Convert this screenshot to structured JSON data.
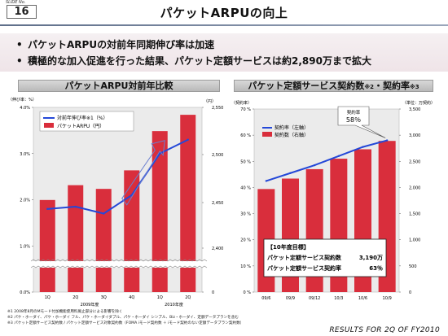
{
  "header": {
    "slide_caption": "SLIDE No.",
    "slide_number": "16",
    "title": "パケットARPUの向上"
  },
  "bullets": [
    "パケットARPUの対前年同期伸び率は加速",
    "積極的な加入促進を行った結果、パケット定額サービスは約2,890万まで拡大"
  ],
  "left_panel": {
    "title": "パケットARPU対前年比較"
  },
  "right_panel": {
    "title": "パケット定額サービス契約数",
    "title_note": "※2",
    "title_sep": "・契約率",
    "title_note2": "※3"
  },
  "colors": {
    "bar": "#d92e3c",
    "line": "#2448d8",
    "panel_bg": "#ebebeb"
  },
  "footnotes": [
    "※1 2008年8月のMモード付加機能使用料廃止部分による影響を除く",
    "※2 パケ・ホーダイ、パケ・ホーダイ フル、パケ・ホーダイダブル、パケ・ホーダイ シンプル、Biz・ホーダイ、定額データプランを含む",
    "※3 パケット定額サービス契約数 / パケット定額サービス対象契約数（FOMA iモード契約数 ＋ iモード契約のない定額データプラン契約数）"
  ],
  "results": "RESULTS FOR 2Q OF FY2010",
  "chart_data": [
    {
      "type": "bar",
      "title": "パケットARPU対前年比較",
      "left_axis_label": "（伸び率：%）",
      "right_axis_label": "（円）",
      "categories": [
        "1Q",
        "2Q",
        "3Q",
        "4Q",
        "1Q",
        "2Q"
      ],
      "category_groups": [
        {
          "label": "2009年度",
          "from": 0,
          "to": 3
        },
        {
          "label": "2010年度",
          "from": 4,
          "to": 5
        }
      ],
      "left_ticks": [
        "0.0%",
        "1.0%",
        "2.0%",
        "3.0%",
        "4.0%"
      ],
      "right_ticks": [
        "0",
        "2,400",
        "2,450",
        "2,500",
        "2,550"
      ],
      "series": [
        {
          "name": "対前年伸び率※1（%）",
          "type": "line",
          "values": [
            1.8,
            1.85,
            1.7,
            2.1,
            3.0,
            3.3
          ],
          "ylim": [
            0,
            4
          ]
        },
        {
          "name": "パケットARPU（円）",
          "type": "bar",
          "values": [
            2425,
            2445,
            2440,
            2465,
            2518,
            2540
          ],
          "ylim": [
            2380,
            2550
          ]
        }
      ]
    },
    {
      "type": "bar",
      "title": "パケット定額サービス契約数・契約率",
      "left_axis_label": "（契約率）",
      "right_axis_label": "（単位：万契約）",
      "categories": [
        "09/6",
        "09/9",
        "09/12",
        "10/3",
        "10/6",
        "10/9"
      ],
      "left_ticks": [
        "0 %",
        "10 %",
        "20 %",
        "30 %",
        "40 %",
        "50 %",
        "60 %",
        "70 %"
      ],
      "right_ticks": [
        "0",
        "500",
        "1,000",
        "1,500",
        "2,000",
        "2,500",
        "3,000",
        "3,500"
      ],
      "ylim_left": [
        0,
        70
      ],
      "ylim_right": [
        0,
        3500
      ],
      "series": [
        {
          "name": "契約率（左軸）",
          "type": "line",
          "values": [
            42.5,
            45.5,
            48.5,
            52,
            55.5,
            58
          ]
        },
        {
          "name": "契約数（右軸）",
          "type": "bar",
          "values": [
            1970,
            2170,
            2350,
            2550,
            2730,
            2890
          ]
        }
      ],
      "callout": {
        "label": "契約率",
        "value": "58％"
      },
      "target_box": {
        "heading": "【10年度目標】",
        "row1_label": "パケット定額サービス契約数",
        "row1_value": "3,190万",
        "row2_label": "パケット定額サービス契約率",
        "row2_value": "63％"
      }
    }
  ]
}
